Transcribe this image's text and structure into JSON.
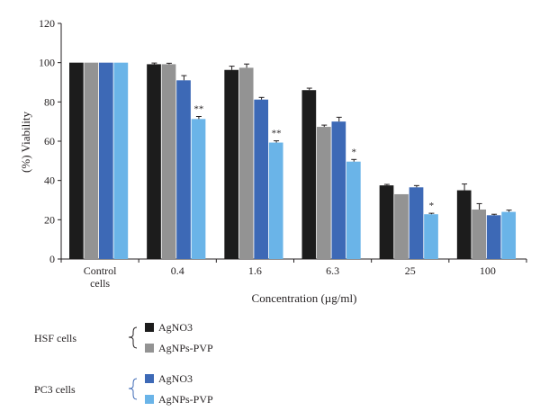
{
  "chart_data": {
    "type": "bar",
    "title": "",
    "xlabel": "Concentration (µg/ml)",
    "ylabel": "(%) Viability",
    "ylim": [
      0,
      120
    ],
    "yticks": [
      0,
      20,
      40,
      60,
      80,
      100,
      120
    ],
    "categories": [
      [
        "Control",
        "cells"
      ],
      [
        "0.4"
      ],
      [
        "1.6"
      ],
      [
        "6.3"
      ],
      [
        "25"
      ],
      [
        "100"
      ]
    ],
    "series": [
      {
        "name": "AgNO3",
        "group": "HSF cells",
        "color": "#1c1c1c",
        "values": [
          100,
          99.2,
          96.3,
          86,
          37.5,
          35
        ],
        "errors": [
          0.3,
          0.6,
          1.9,
          1.0,
          0.5,
          3.2
        ]
      },
      {
        "name": "AgNPs-PVP",
        "group": "HSF cells",
        "color": "#939393",
        "values": [
          100,
          99.2,
          97.4,
          67.3,
          33,
          25.2
        ],
        "errors": [
          0.3,
          0.5,
          1.9,
          0.9,
          0.4,
          3.0
        ]
      },
      {
        "name": "AgNO3",
        "group": "PC3 cells",
        "color": "#3d69b6",
        "values": [
          100,
          91,
          81.2,
          70,
          36.5,
          22.3
        ],
        "errors": [
          0.3,
          2.4,
          1.1,
          2.2,
          0.9,
          0.5
        ]
      },
      {
        "name": "AgNPs-PVP",
        "group": "PC3 cells",
        "color": "#6ab4e8",
        "values": [
          100,
          71.3,
          59.3,
          49.6,
          22.8,
          24
        ],
        "errors": [
          0.3,
          1.3,
          0.9,
          1.1,
          0.5,
          0.9
        ]
      }
    ],
    "annotations": [
      {
        "category": 1,
        "series": 3,
        "text": "**"
      },
      {
        "category": 2,
        "series": 3,
        "text": "**"
      },
      {
        "category": 3,
        "series": 3,
        "text": "*"
      },
      {
        "category": 4,
        "series": 3,
        "text": "*"
      }
    ],
    "grid": false,
    "legend": {
      "groups": [
        {
          "label": "HSF cells",
          "bracket_color": "#231f20",
          "items": [
            0,
            1
          ]
        },
        {
          "label": "PC3 cells",
          "bracket_color": "#3d69b6",
          "items": [
            2,
            3
          ]
        }
      ],
      "placement": "bottom-left"
    }
  }
}
